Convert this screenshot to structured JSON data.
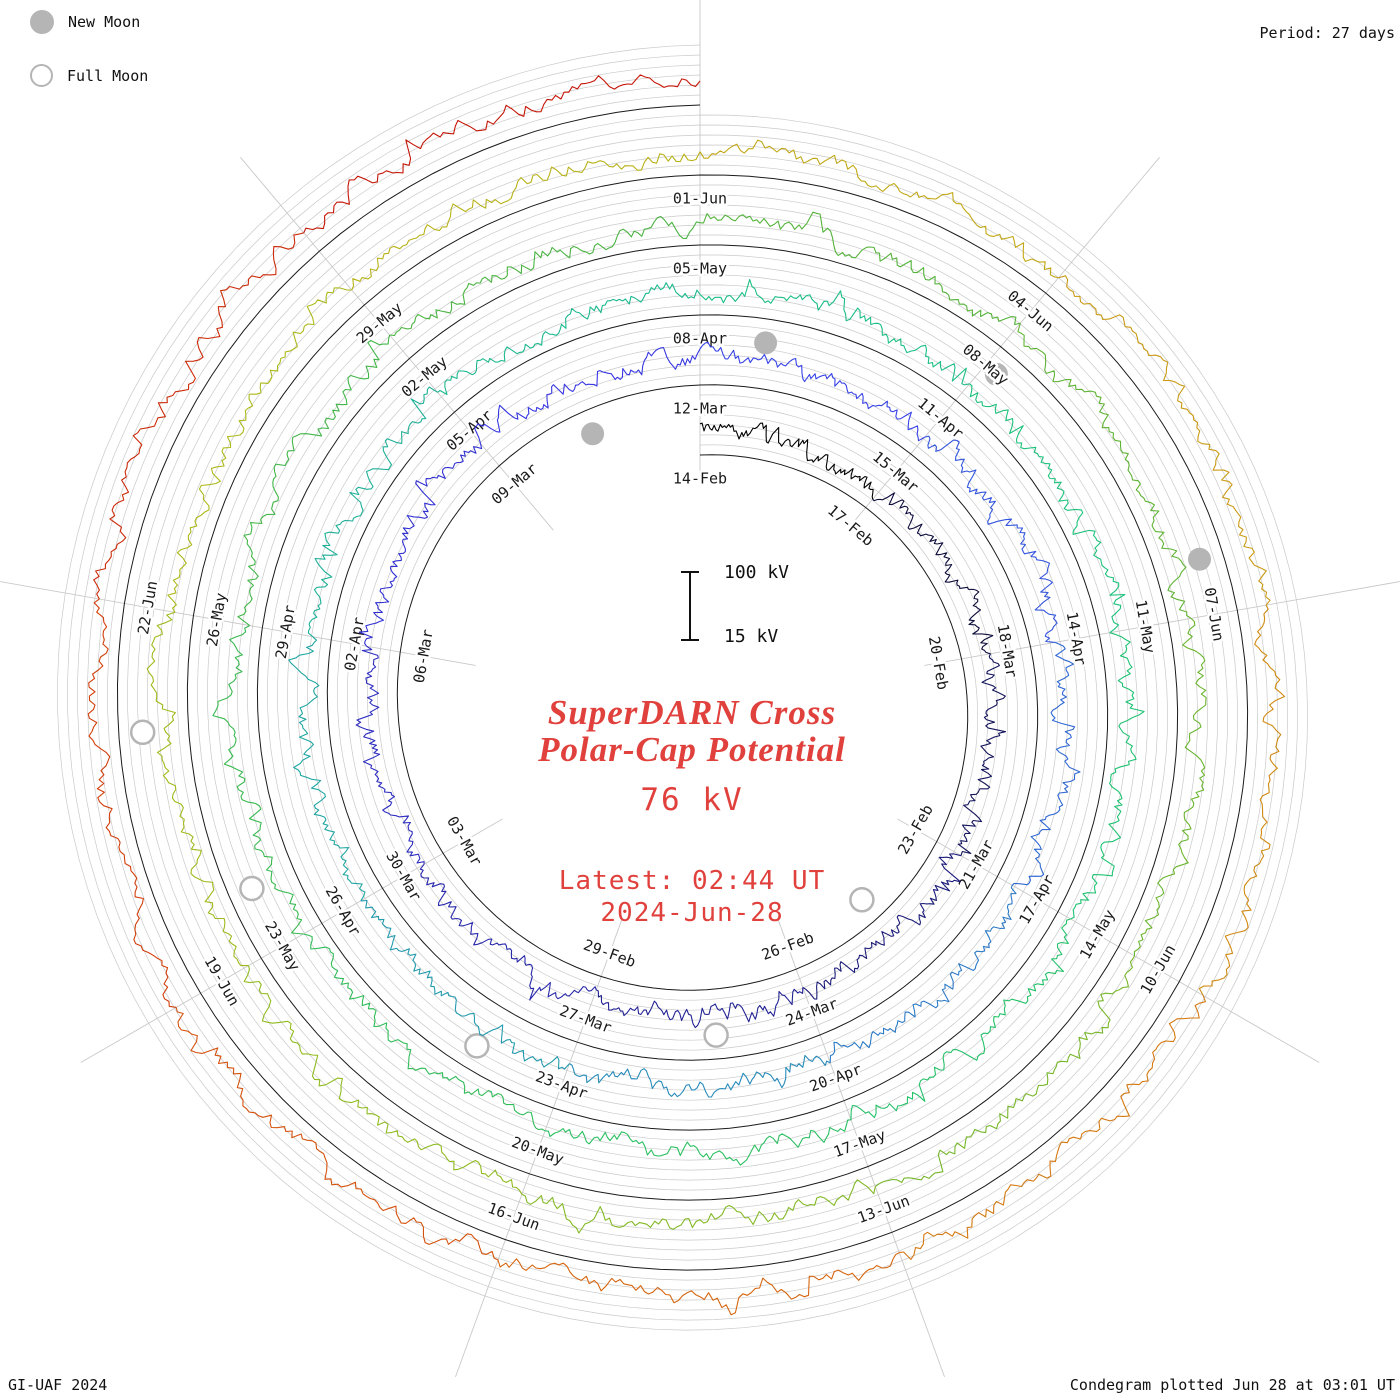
{
  "header": {
    "legend_new": "New Moon",
    "legend_full": "Full Moon",
    "period_label": "Period: 27 days"
  },
  "footer": {
    "credit": "GI-UAF 2024",
    "plotted": "Condegram plotted Jun 28 at 03:01 UT"
  },
  "center": {
    "title_line1": "SuperDARN Cross",
    "title_line2": "Polar-Cap Potential",
    "value": "76 kV",
    "latest_label": "Latest: 02:44 UT",
    "latest_date": "2024-Jun-28",
    "scale_top": "100 kV",
    "scale_bottom": "15 kV",
    "accent_color": "#e0413d"
  },
  "chart_data": {
    "type": "line",
    "layout": "spiral-condegram",
    "title": "SuperDARN Cross Polar-Cap Potential",
    "units": "kV",
    "value_range": [
      15,
      100
    ],
    "latest_value_kv": 76,
    "latest_time": "02:44 UT 2024-Jun-28",
    "period_days": 27,
    "start_date": "2024-02-14",
    "end_date": "2024-06-28",
    "total_days": 135,
    "direction": "clockwise",
    "start_angle": "top",
    "label_step_days": 3,
    "segment_days": 3,
    "grid_color": "#c9c9c9",
    "spiral_color": "#1a1a1a",
    "moon_color": "#b5b5b5",
    "date_labels": [
      "14-Feb",
      "17-Feb",
      "20-Feb",
      "23-Feb",
      "26-Feb",
      "29-Feb",
      "03-Mar",
      "06-Mar",
      "09-Mar",
      "12-Mar",
      "15-Mar",
      "18-Mar",
      "21-Mar",
      "24-Mar",
      "27-Mar",
      "30-Mar",
      "02-Apr",
      "05-Apr",
      "08-Apr",
      "11-Apr",
      "14-Apr",
      "17-Apr",
      "20-Apr",
      "23-Apr",
      "26-Apr",
      "29-Apr",
      "02-May",
      "05-May",
      "08-May",
      "11-May",
      "14-May",
      "17-May",
      "20-May",
      "23-May",
      "26-May",
      "29-May",
      "01-Jun",
      "04-Jun",
      "07-Jun",
      "10-Jun",
      "13-Jun",
      "16-Jun",
      "19-Jun",
      "22-Jun"
    ],
    "new_moons": [
      {
        "date": "10-Mar",
        "day": 25.38
      },
      {
        "date": "08-Apr",
        "day": 54.77
      },
      {
        "date": "08-May",
        "day": 84.14
      },
      {
        "date": "06-Jun",
        "day": 113.53
      }
    ],
    "full_moons": [
      {
        "date": "24-Feb",
        "day": 10.52
      },
      {
        "date": "25-Mar",
        "day": 40.29
      },
      {
        "date": "23-Apr",
        "day": 69.99
      },
      {
        "date": "23-May",
        "day": 99.58
      },
      {
        "date": "21-Jun",
        "day": 128.04
      }
    ],
    "segment_colors": [
      "#000000",
      "#0c0c3a",
      "#15155c",
      "#1c1c7a",
      "#222294",
      "#2828ab",
      "#2d2dc0",
      "#3232d2",
      "#3737e2",
      "#3642e6",
      "#3355dd",
      "#2f68d2",
      "#2b7ac6",
      "#278bba",
      "#239aae",
      "#20a6a2",
      "#1eb097",
      "#1cb88d",
      "#1bbe84",
      "#1cc17b",
      "#1fc272",
      "#24c169",
      "#2abf60",
      "#31bc58",
      "#39b950",
      "#41b648",
      "#4ab441",
      "#54b33a",
      "#5fb334",
      "#6ab52e",
      "#76b729",
      "#83b924",
      "#90bb20",
      "#9ebb1d",
      "#acb91a",
      "#b8b218",
      "#c2a816",
      "#ca9a14",
      "#d08a12",
      "#d47810",
      "#d6650e",
      "#d4520c",
      "#d13e0a",
      "#cc2a08",
      "#c51506"
    ]
  }
}
